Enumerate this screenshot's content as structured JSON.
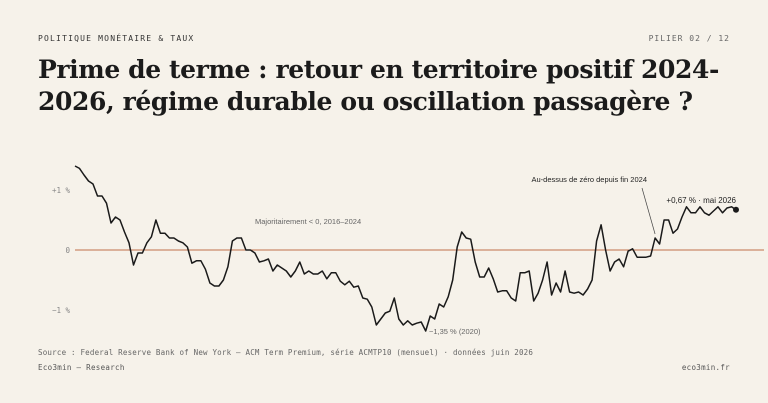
{
  "header": {
    "kicker": "POLITIQUE MONÉTAIRE & TAUX",
    "pager": "PILIER 02 / 12"
  },
  "title": "Prime de terme : retour en territoire positif 2024-2026, régime durable ou oscillation passagère ?",
  "footer": {
    "source": "Source : Federal Reserve Bank of New York — ACM Term Premium, série ACMTP10 (mensuel) · données juin 2026",
    "brand": "Eco3min — Research",
    "site": "eco3min.fr"
  },
  "colors": {
    "line": "#1a1a1a",
    "zero_line": "#c0704a",
    "background": "#f6f2ea"
  },
  "chart_data": {
    "type": "line",
    "title": "",
    "xlabel": "",
    "ylabel": "",
    "ylim": [
      -1.3,
      1.35
    ],
    "grid": false,
    "y_ticks": [
      {
        "value": 1,
        "label": "+1 %"
      },
      {
        "value": 0,
        "label": "0"
      },
      {
        "value": -1,
        "label": "−1 %"
      }
    ],
    "series": [
      {
        "values": [
          1.4,
          1.36,
          1.25,
          1.15,
          1.1,
          0.9,
          0.9,
          0.78,
          0.45,
          0.55,
          0.5,
          0.3,
          0.12,
          -0.25,
          -0.05,
          -0.05,
          0.12,
          0.22,
          0.5,
          0.28,
          0.28,
          0.2,
          0.2,
          0.15,
          0.12,
          0.05,
          -0.22,
          -0.18,
          -0.18,
          -0.32,
          -0.55,
          -0.6,
          -0.6,
          -0.5,
          -0.28,
          0.15,
          0.2,
          0.2,
          0.0,
          0.0,
          -0.05,
          -0.2,
          -0.18,
          -0.15,
          -0.35,
          -0.25,
          -0.3,
          -0.35,
          -0.45,
          -0.35,
          -0.2,
          -0.4,
          -0.35,
          -0.4,
          -0.4,
          -0.35,
          -0.48,
          -0.38,
          -0.38,
          -0.52,
          -0.58,
          -0.52,
          -0.62,
          -0.6,
          -0.8,
          -0.82,
          -0.95,
          -1.25,
          -1.15,
          -1.05,
          -1.02,
          -0.8,
          -1.15,
          -1.25,
          -1.18,
          -1.25,
          -1.22,
          -1.2,
          -1.35,
          -1.1,
          -1.15,
          -0.9,
          -0.95,
          -0.78,
          -0.5,
          0.05,
          0.3,
          0.2,
          0.18,
          -0.2,
          -0.45,
          -0.45,
          -0.3,
          -0.48,
          -0.7,
          -0.68,
          -0.68,
          -0.8,
          -0.85,
          -0.38,
          -0.38,
          -0.35,
          -0.85,
          -0.72,
          -0.5,
          -0.2,
          -0.75,
          -0.55,
          -0.7,
          -0.35,
          -0.7,
          -0.72,
          -0.7,
          -0.75,
          -0.65,
          -0.5,
          0.15,
          0.42,
          0.0,
          -0.35,
          -0.2,
          -0.15,
          -0.28,
          -0.02,
          0.02,
          -0.12,
          -0.12,
          -0.12,
          -0.1,
          0.2,
          0.1,
          0.5,
          0.5,
          0.28,
          0.35,
          0.55,
          0.72,
          0.62,
          0.62,
          0.72,
          0.62,
          0.58,
          0.65,
          0.72,
          0.62,
          0.7,
          0.72,
          0.67
        ]
      }
    ],
    "annotations": [
      {
        "text": "Majoritairement < 0, 2016–2024"
      },
      {
        "text": "−1,35 % (2020)"
      },
      {
        "text": "Au-dessus de zéro depuis fin 2024"
      },
      {
        "text": "+0,67 % · mai 2026"
      }
    ]
  }
}
